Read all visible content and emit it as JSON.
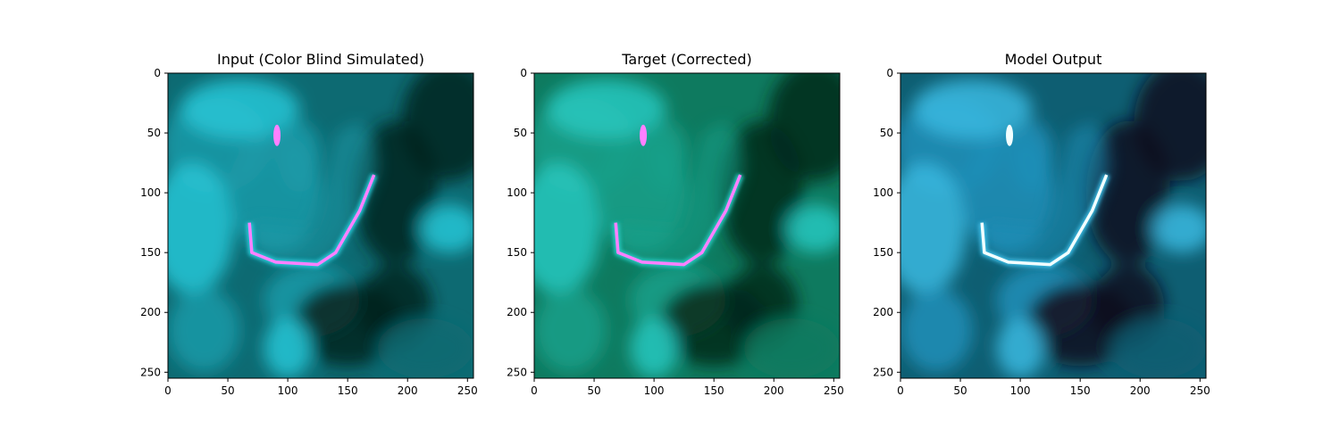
{
  "chart_data": [
    {
      "type": "image",
      "title": "Input (Color Blind Simulated)",
      "xlim": [
        0,
        255
      ],
      "ylim": [
        255,
        0
      ],
      "xticks": [
        0,
        50,
        100,
        150,
        200,
        250
      ],
      "yticks": [
        0,
        50,
        100,
        150,
        200,
        250
      ],
      "palette": {
        "dark": "#06251f",
        "base": "#0d6a72",
        "mid": "#1b9aa8",
        "bright": "#27c6d6",
        "highlight": "#ff80ff"
      }
    },
    {
      "type": "image",
      "title": "Target (Corrected)",
      "xlim": [
        0,
        255
      ],
      "ylim": [
        255,
        0
      ],
      "xticks": [
        0,
        50,
        100,
        150,
        200,
        250
      ],
      "yticks": [
        0,
        50,
        100,
        150,
        200,
        250
      ],
      "palette": {
        "dark": "#05281a",
        "base": "#0e7a5f",
        "mid": "#17a08a",
        "bright": "#27c8c0",
        "highlight": "#ff80ff"
      }
    },
    {
      "type": "image",
      "title": "Model Output",
      "xlim": [
        0,
        255
      ],
      "ylim": [
        255,
        0
      ],
      "xticks": [
        0,
        50,
        100,
        150,
        200,
        250
      ],
      "yticks": [
        0,
        50,
        100,
        150,
        200,
        250
      ],
      "palette": {
        "dark": "#120a1c",
        "base": "#0e5e72",
        "mid": "#1e8fb8",
        "bright": "#3ab8e0",
        "highlight": "#f2ffff"
      }
    }
  ]
}
